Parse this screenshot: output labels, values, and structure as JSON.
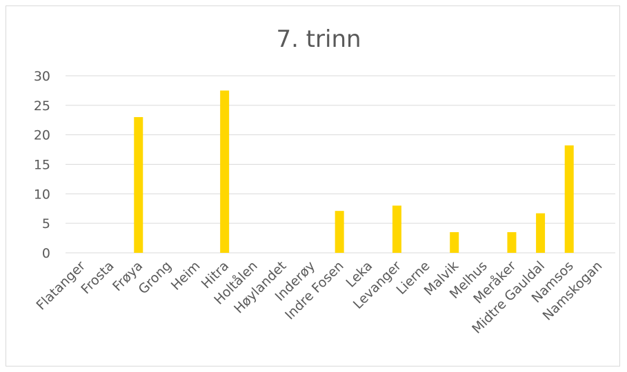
{
  "chart_data": {
    "type": "bar",
    "title": "7. trinn",
    "xlabel": "",
    "ylabel": "",
    "ylim": [
      0,
      30
    ],
    "yticks": [
      0,
      5,
      10,
      15,
      20,
      25,
      30
    ],
    "grid": true,
    "legend": "none",
    "bar_color": "#FFD700",
    "categories": [
      "Flatanger",
      "Frosta",
      "Frøya",
      "Grong",
      "Heim",
      "Hitra",
      "Holtålen",
      "Høylandet",
      "Inderøy",
      "Indre Fosen",
      "Leka",
      "Levanger",
      "Lierne",
      "Malvik",
      "Melhus",
      "Meråker",
      "Midtre Gauldal",
      "Namsos",
      "Namskogan"
    ],
    "values": [
      null,
      null,
      23,
      null,
      null,
      27.5,
      null,
      null,
      null,
      7.1,
      null,
      8,
      null,
      3.5,
      null,
      3.5,
      6.7,
      18.2,
      null
    ],
    "value_positions_note": ""
  }
}
